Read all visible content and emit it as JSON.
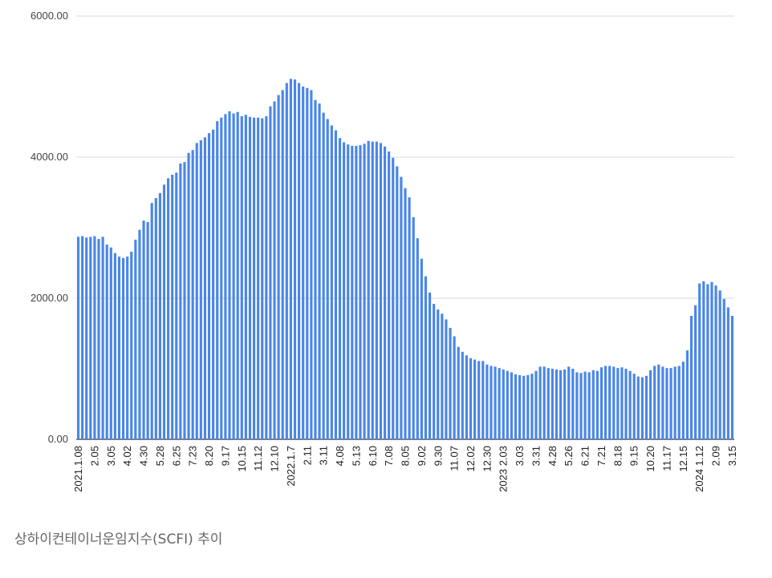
{
  "caption": "상하이컨테이너운임지수(SCFI) 추이",
  "chart_data": {
    "type": "bar",
    "title": "",
    "xlabel": "",
    "ylabel": "",
    "ylim": [
      0,
      6000
    ],
    "y_ticks": [
      "0.00",
      "2000.00",
      "4000.00",
      "6000.00"
    ],
    "grid": true,
    "bar_color": "#4a86e8",
    "x_tick_labels": [
      {
        "i": 0,
        "label": "2021.1.08"
      },
      {
        "i": 4,
        "label": "2.05"
      },
      {
        "i": 8,
        "label": "3.05"
      },
      {
        "i": 12,
        "label": "4.02"
      },
      {
        "i": 16,
        "label": "4.30"
      },
      {
        "i": 20,
        "label": "5.28"
      },
      {
        "i": 24,
        "label": "6.25"
      },
      {
        "i": 28,
        "label": "7.23"
      },
      {
        "i": 32,
        "label": "8.20"
      },
      {
        "i": 36,
        "label": "9.17"
      },
      {
        "i": 40,
        "label": "10.15"
      },
      {
        "i": 44,
        "label": "11.12"
      },
      {
        "i": 48,
        "label": "12.10"
      },
      {
        "i": 52,
        "label": "2022.1.7"
      },
      {
        "i": 56,
        "label": "2.11"
      },
      {
        "i": 60,
        "label": "3.11"
      },
      {
        "i": 64,
        "label": "4.08"
      },
      {
        "i": 68,
        "label": "5.13"
      },
      {
        "i": 72,
        "label": "6.10"
      },
      {
        "i": 76,
        "label": "7.08"
      },
      {
        "i": 80,
        "label": "8.05"
      },
      {
        "i": 84,
        "label": "9.02"
      },
      {
        "i": 88,
        "label": "9.30"
      },
      {
        "i": 92,
        "label": "11.07"
      },
      {
        "i": 96,
        "label": "12.02"
      },
      {
        "i": 100,
        "label": "12.30"
      },
      {
        "i": 104,
        "label": "2023 2.03"
      },
      {
        "i": 108,
        "label": "3.03"
      },
      {
        "i": 112,
        "label": "3.31"
      },
      {
        "i": 116,
        "label": "4.28"
      },
      {
        "i": 120,
        "label": "5.26"
      },
      {
        "i": 124,
        "label": "6.21"
      },
      {
        "i": 128,
        "label": "7.21"
      },
      {
        "i": 132,
        "label": "8.18"
      },
      {
        "i": 136,
        "label": "9.15"
      },
      {
        "i": 140,
        "label": "10.20"
      },
      {
        "i": 144,
        "label": "11.17"
      },
      {
        "i": 148,
        "label": "12.15"
      },
      {
        "i": 152,
        "label": "2024 1.12"
      },
      {
        "i": 156,
        "label": "2.09"
      },
      {
        "i": 160,
        "label": "3.15"
      }
    ],
    "values": [
      2870,
      2880,
      2860,
      2870,
      2880,
      2840,
      2870,
      2760,
      2720,
      2640,
      2590,
      2570,
      2590,
      2660,
      2830,
      2970,
      3100,
      3080,
      3350,
      3420,
      3490,
      3610,
      3700,
      3750,
      3780,
      3910,
      3930,
      4060,
      4100,
      4200,
      4240,
      4280,
      4340,
      4390,
      4510,
      4560,
      4610,
      4650,
      4620,
      4640,
      4580,
      4600,
      4570,
      4560,
      4560,
      4550,
      4580,
      4720,
      4790,
      4880,
      4950,
      5050,
      5110,
      5100,
      5050,
      5000,
      4980,
      4950,
      4810,
      4760,
      4630,
      4540,
      4450,
      4380,
      4270,
      4210,
      4180,
      4160,
      4160,
      4170,
      4190,
      4230,
      4220,
      4220,
      4200,
      4150,
      4080,
      3990,
      3870,
      3720,
      3560,
      3430,
      3150,
      2850,
      2560,
      2310,
      2080,
      1920,
      1840,
      1780,
      1700,
      1580,
      1460,
      1310,
      1240,
      1190,
      1150,
      1130,
      1110,
      1110,
      1060,
      1040,
      1030,
      1010,
      990,
      970,
      950,
      920,
      910,
      900,
      910,
      930,
      970,
      1030,
      1030,
      1010,
      1000,
      990,
      980,
      990,
      1030,
      1000,
      950,
      940,
      960,
      950,
      980,
      970,
      1020,
      1040,
      1040,
      1030,
      1010,
      1020,
      1000,
      970,
      930,
      890,
      880,
      900,
      980,
      1040,
      1060,
      1030,
      1010,
      1010,
      1030,
      1040,
      1100,
      1260,
      1750,
      1900,
      2210,
      2240,
      2200,
      2230,
      2180,
      2110,
      1990,
      1870,
      1750
    ]
  }
}
